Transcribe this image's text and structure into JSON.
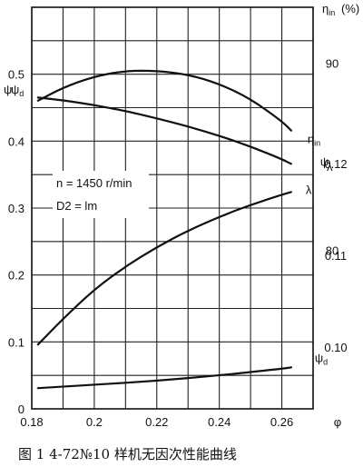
{
  "chart_data": {
    "type": "line",
    "caption": "图 1 4-72№10 样机无因次性能曲线",
    "annotations": [
      "n = 1450 r/min",
      "D2 = lm"
    ],
    "x_axis": {
      "label": "φ",
      "range": [
        0.18,
        0.27
      ],
      "ticks": [
        "0.18",
        "0.2",
        "0.22",
        "0.24",
        "0.26"
      ]
    },
    "left_axis": {
      "label": "ψ ψd",
      "range": [
        0,
        0.6
      ],
      "ticks": [
        "0",
        "0.1",
        "0.2",
        "0.3",
        "0.4",
        "0.5"
      ]
    },
    "right_axis_eta": {
      "label": "ηin (%)",
      "range": [
        71.5,
        93
      ],
      "ticks": [
        "90",
        "80"
      ]
    },
    "right_axis_lambda": {
      "label": "λ",
      "range": [
        0.0933,
        0.137
      ],
      "ticks": [
        "0.12",
        "0.11",
        "0.10"
      ]
    },
    "grid": true,
    "series": [
      {
        "name": "ηin",
        "axis": "eta",
        "x": [
          0.182,
          0.19,
          0.2,
          0.21,
          0.22,
          0.23,
          0.24,
          0.25,
          0.26,
          0.263
        ],
        "y": [
          88.0,
          88.7,
          89.3,
          89.6,
          89.6,
          89.4,
          88.9,
          88.1,
          86.9,
          86.4
        ]
      },
      {
        "name": "ψ",
        "axis": "left",
        "x": [
          0.182,
          0.19,
          0.2,
          0.21,
          0.22,
          0.23,
          0.24,
          0.25,
          0.26,
          0.263
        ],
        "y": [
          0.465,
          0.461,
          0.454,
          0.445,
          0.434,
          0.422,
          0.408,
          0.392,
          0.373,
          0.366
        ]
      },
      {
        "name": "λ",
        "axis": "lambda",
        "x": [
          0.182,
          0.19,
          0.2,
          0.21,
          0.22,
          0.23,
          0.24,
          0.25,
          0.26,
          0.263
        ],
        "y": [
          0.1003,
          0.1031,
          0.1063,
          0.1088,
          0.1109,
          0.1127,
          0.1142,
          0.1155,
          0.1166,
          0.1169
        ]
      },
      {
        "name": "ψd",
        "axis": "left",
        "x": [
          0.182,
          0.2,
          0.22,
          0.24,
          0.26,
          0.263
        ],
        "y": [
          0.031,
          0.036,
          0.042,
          0.05,
          0.06,
          0.062
        ]
      }
    ]
  }
}
